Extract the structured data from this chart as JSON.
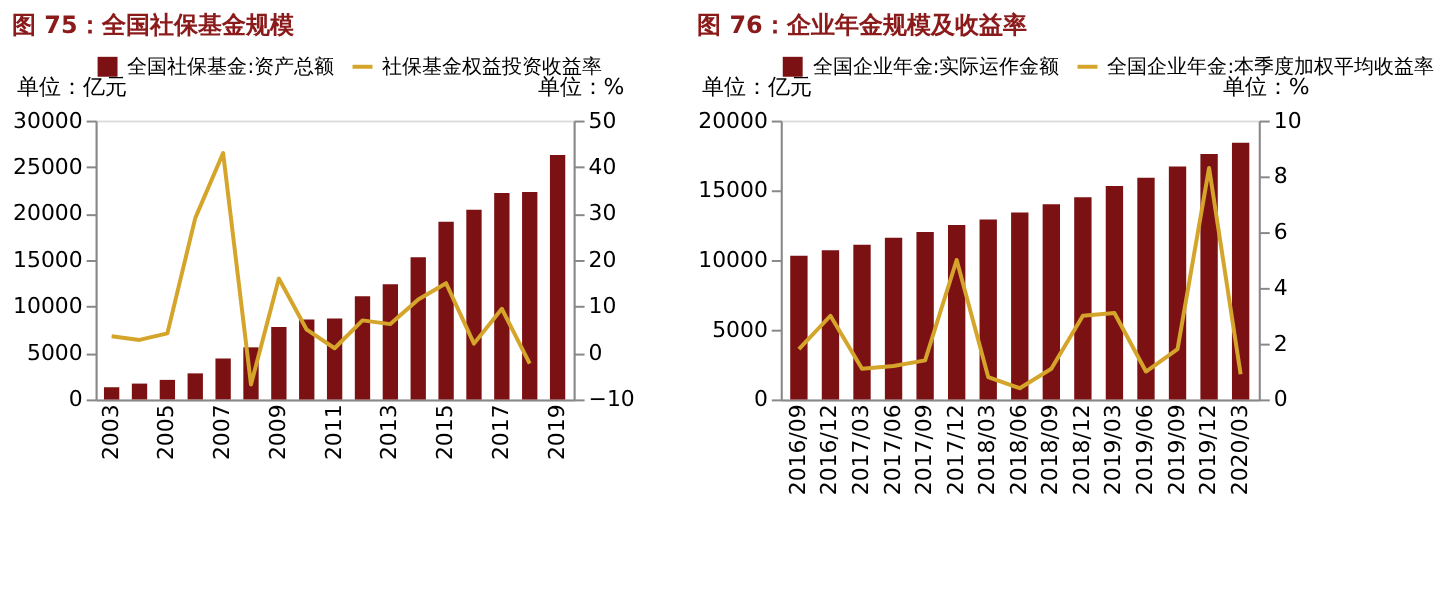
{
  "chart_data": [
    {
      "type": "bar",
      "title": "图 75：全国社保基金规模",
      "ylabel": "单位：亿元",
      "y2label": "单位：%",
      "categories": [
        "2003",
        null,
        "2005",
        null,
        "2007",
        null,
        "2009",
        null,
        "2011",
        null,
        "2013",
        null,
        "2015",
        null,
        "2017",
        null,
        "2019"
      ],
      "series": [
        {
          "name": "全国社保基金:资产总额",
          "color": "#7b1113",
          "values": [
            1300,
            1700,
            2100,
            2800,
            4400,
            5600,
            7800,
            8600,
            8700,
            11100,
            12400,
            15300,
            19100,
            20400,
            22200,
            22300,
            26300
          ]
        },
        {
          "name": "社保基金权益投资收益率",
          "type": "line",
          "axis": "y2",
          "color": "#d4a52a",
          "values": [
            3.6,
            2.8,
            4.2,
            29,
            43,
            -6.8,
            16,
            5,
            1,
            7,
            6.2,
            11.5,
            15,
            2,
            9.5,
            -2.3,
            null
          ]
        }
      ],
      "ylim": [
        0,
        30000
      ],
      "yticks": [
        0,
        5000,
        10000,
        15000,
        20000,
        25000,
        30000
      ],
      "y2lim": [
        -10,
        50
      ],
      "y2ticks": [
        -10,
        0,
        10,
        20,
        30,
        40,
        50
      ],
      "grid": false,
      "legend": "top"
    },
    {
      "type": "bar",
      "title": "图 76：企业年金规模及收益率",
      "ylabel": "单位：亿元",
      "y2label": "单位：%",
      "categories": [
        "2016/09",
        "2016/12",
        "2017/03",
        "2017/06",
        "2017/09",
        "2017/12",
        "2018/03",
        "2018/06",
        "2018/09",
        "2018/12",
        "2019/03",
        "2019/06",
        "2019/09",
        "2019/12",
        "2020/03"
      ],
      "series": [
        {
          "name": "全国企业年金:实际运作金额",
          "color": "#7b1113",
          "values": [
            10300,
            10700,
            11100,
            11600,
            12000,
            12500,
            12900,
            13400,
            14000,
            14500,
            15300,
            15900,
            16700,
            17600,
            18400
          ]
        },
        {
          "name": "全国企业年金:本季度加权平均收益率",
          "type": "line",
          "axis": "y2",
          "color": "#d4a52a",
          "values": [
            1.8,
            3.0,
            1.1,
            1.2,
            1.4,
            5.0,
            0.8,
            0.4,
            1.1,
            3.0,
            3.1,
            1.0,
            1.8,
            8.3,
            0.9
          ]
        }
      ],
      "ylim": [
        0,
        20000
      ],
      "yticks": [
        0,
        5000,
        10000,
        15000,
        20000
      ],
      "y2lim": [
        0,
        10
      ],
      "y2ticks": [
        0,
        2,
        4,
        6,
        8,
        10
      ],
      "grid": false,
      "legend": "top"
    }
  ]
}
